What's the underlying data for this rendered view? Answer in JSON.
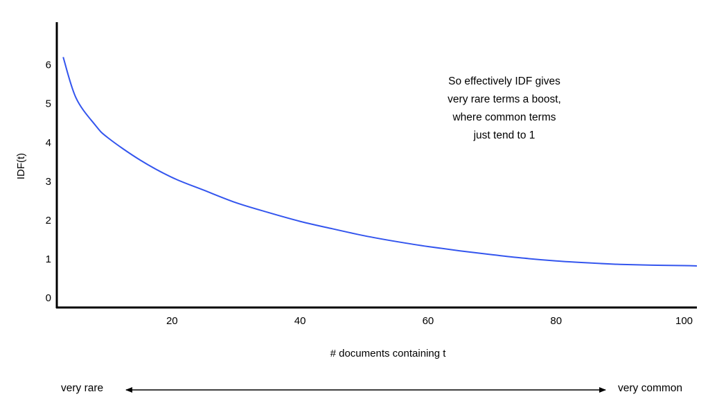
{
  "chart_data": {
    "type": "line",
    "title": "",
    "xlabel": "# documents containing t",
    "ylabel": "IDF(t)",
    "xlim": [
      2,
      102
    ],
    "ylim": [
      -0.25,
      7.1
    ],
    "x_ticks": [
      20,
      40,
      60,
      80,
      100
    ],
    "y_ticks": [
      0,
      1,
      2,
      3,
      4,
      5,
      6
    ],
    "grid": false,
    "legend": "none",
    "line_color": "#3355ee",
    "series": [
      {
        "x": [
          3,
          5,
          8,
          10,
          15,
          20,
          25,
          30,
          35,
          40,
          45,
          50,
          55,
          60,
          65,
          70,
          75,
          80,
          85,
          90,
          95,
          100,
          102
        ],
        "y": [
          6.2,
          5.15,
          4.45,
          4.12,
          3.55,
          3.1,
          2.77,
          2.45,
          2.2,
          1.97,
          1.78,
          1.6,
          1.45,
          1.32,
          1.21,
          1.11,
          1.02,
          0.95,
          0.9,
          0.86,
          0.84,
          0.83,
          0.82
        ]
      }
    ],
    "annotations": {
      "note_lines": [
        "So effectively IDF gives",
        "very rare terms a boost,",
        "where common terms",
        "just tend to 1"
      ],
      "range_left": "very rare",
      "range_right": "very common"
    }
  }
}
